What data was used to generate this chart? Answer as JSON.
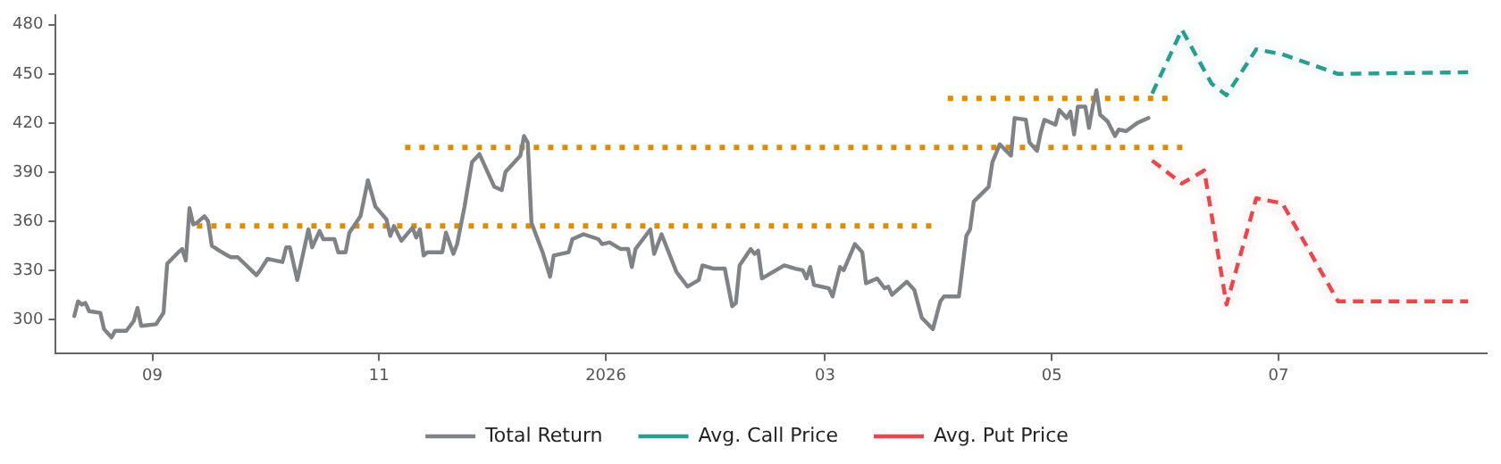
{
  "chart_data": {
    "type": "line",
    "xlim": [
      "2025-08-06",
      "2026-08-26"
    ],
    "ylim": [
      279,
      486
    ],
    "xticks": [
      {
        "value": "2025-09-01",
        "label": "09"
      },
      {
        "value": "2025-11-01",
        "label": "11"
      },
      {
        "value": "2026-01-01",
        "label": "2026"
      },
      {
        "value": "2026-03-01",
        "label": "03"
      },
      {
        "value": "2026-05-01",
        "label": "05"
      },
      {
        "value": "2026-07-01",
        "label": "07"
      }
    ],
    "yticks": [
      300,
      330,
      360,
      390,
      420,
      450,
      480
    ],
    "grid": false,
    "legend": "bottom",
    "marker": "none",
    "series": [
      {
        "name": "Total Return",
        "color": "#808285",
        "line_style": "solid",
        "x": [
          "2025-08-11",
          "2025-08-12",
          "2025-08-13",
          "2025-08-14",
          "2025-08-15",
          "2025-08-18",
          "2025-08-19",
          "2025-08-21",
          "2025-08-22",
          "2025-08-25",
          "2025-08-27",
          "2025-08-28",
          "2025-08-29",
          "2025-09-02",
          "2025-09-04",
          "2025-09-05",
          "2025-09-08",
          "2025-09-09",
          "2025-09-10",
          "2025-09-11",
          "2025-09-12",
          "2025-09-13",
          "2025-09-15",
          "2025-09-16",
          "2025-09-17",
          "2025-09-19",
          "2025-09-22",
          "2025-09-24",
          "2025-09-29",
          "2025-09-30",
          "2025-10-02",
          "2025-10-04",
          "2025-10-06",
          "2025-10-07",
          "2025-10-08",
          "2025-10-10",
          "2025-10-13",
          "2025-10-14",
          "2025-10-16",
          "2025-10-17",
          "2025-10-20",
          "2025-10-21",
          "2025-10-23",
          "2025-10-24",
          "2025-10-27",
          "2025-10-29",
          "2025-10-31",
          "2025-11-03",
          "2025-11-04",
          "2025-11-05",
          "2025-11-07",
          "2025-11-10",
          "2025-11-11",
          "2025-11-12",
          "2025-11-13",
          "2025-11-14",
          "2025-11-18",
          "2025-11-19",
          "2025-11-21",
          "2025-11-22",
          "2025-11-24",
          "2025-11-26",
          "2025-11-28",
          "2025-12-02",
          "2025-12-04",
          "2025-12-05",
          "2025-12-09",
          "2025-12-10",
          "2025-12-11",
          "2025-12-12",
          "2025-12-15",
          "2025-12-17",
          "2025-12-18",
          "2025-12-22",
          "2025-12-23",
          "2025-12-26",
          "2025-12-30",
          "2025-12-31",
          "2026-01-02",
          "2026-01-05",
          "2026-01-07",
          "2026-01-08",
          "2026-01-09",
          "2026-01-13",
          "2026-01-14",
          "2026-01-16",
          "2026-01-20",
          "2026-01-23",
          "2026-01-26",
          "2026-01-27",
          "2026-01-30",
          "2026-02-02",
          "2026-02-04",
          "2026-02-05",
          "2026-02-06",
          "2026-02-09",
          "2026-02-10",
          "2026-02-11",
          "2026-02-12",
          "2026-02-18",
          "2026-02-21",
          "2026-02-23",
          "2026-02-24",
          "2026-02-25",
          "2026-02-26",
          "2026-03-02",
          "2026-03-03",
          "2026-03-05",
          "2026-03-06",
          "2026-03-09",
          "2026-03-11",
          "2026-03-12",
          "2026-03-15",
          "2026-03-17",
          "2026-03-18",
          "2026-03-19",
          "2026-03-23",
          "2026-03-25",
          "2026-03-27",
          "2026-03-30",
          "2026-04-01",
          "2026-04-02",
          "2026-04-06",
          "2026-04-08",
          "2026-04-09",
          "2026-04-10",
          "2026-04-14",
          "2026-04-15",
          "2026-04-17",
          "2026-04-20",
          "2026-04-21",
          "2026-04-24",
          "2026-04-25",
          "2026-04-27",
          "2026-04-28",
          "2026-04-29",
          "2026-05-02",
          "2026-05-03",
          "2026-05-05",
          "2026-05-06",
          "2026-05-07",
          "2026-05-08",
          "2026-05-10",
          "2026-05-11",
          "2026-05-12",
          "2026-05-13",
          "2026-05-14",
          "2026-05-16",
          "2026-05-18",
          "2026-05-19",
          "2026-05-21",
          "2026-05-24",
          "2026-05-27"
        ],
        "values": [
          302,
          311,
          309,
          310,
          305,
          304,
          294,
          289,
          293,
          293,
          299,
          307,
          296,
          297,
          304,
          334,
          341,
          343,
          336,
          368,
          358,
          359,
          363,
          360,
          345,
          342,
          338,
          338,
          327,
          330,
          337,
          336,
          335,
          344,
          344,
          324,
          355,
          344,
          354,
          349,
          349,
          341,
          341,
          353,
          363,
          385,
          369,
          361,
          351,
          357,
          348,
          356,
          350,
          355,
          339,
          341,
          341,
          353,
          340,
          346,
          369,
          396,
          401,
          381,
          379,
          390,
          400,
          412,
          408,
          359,
          341,
          326,
          339,
          341,
          349,
          352,
          349,
          346,
          347,
          343,
          343,
          332,
          343,
          355,
          340,
          352,
          329,
          320,
          324,
          333,
          331,
          331,
          308,
          310,
          333,
          343,
          340,
          342,
          325,
          333,
          331,
          330,
          325,
          332,
          321,
          319,
          314,
          332,
          330,
          346,
          341,
          322,
          325,
          319,
          320,
          315,
          323,
          318,
          301,
          294,
          311,
          314,
          314,
          351,
          355,
          372,
          381,
          396,
          407,
          400,
          423,
          422,
          408,
          403,
          414,
          422,
          419,
          428,
          423,
          427,
          413,
          430,
          430,
          417,
          430,
          440,
          425,
          421,
          412,
          416,
          415,
          420,
          423
        ]
      },
      {
        "name": "Avg. Call Price",
        "color": "#2a9d8f",
        "line_style": "dashed",
        "x": [
          "2026-05-28",
          "2026-06-05",
          "2026-06-13",
          "2026-06-17",
          "2026-06-25",
          "2026-07-02",
          "2026-07-17",
          "2026-08-21"
        ],
        "values": [
          438,
          477,
          444,
          437,
          465,
          462,
          450,
          451
        ]
      },
      {
        "name": "Avg. Put Price",
        "color": "#e5484d",
        "line_style": "dashed",
        "x": [
          "2026-05-28",
          "2026-06-05",
          "2026-06-11",
          "2026-06-17",
          "2026-06-25",
          "2026-07-02",
          "2026-07-17",
          "2026-08-21"
        ],
        "values": [
          397,
          383,
          391,
          309,
          374,
          371,
          311,
          311
        ]
      },
      {
        "color": "#e08a00",
        "line_style": "dotted",
        "x": [
          "2025-09-13",
          "2026-03-30"
        ],
        "values": [
          357,
          357
        ]
      },
      {
        "color": "#e08a00",
        "line_style": "dotted",
        "x": [
          "2025-11-08",
          "2026-06-06"
        ],
        "values": [
          405,
          405
        ]
      },
      {
        "color": "#e08a00",
        "line_style": "dotted",
        "x": [
          "2026-04-03",
          "2026-06-02"
        ],
        "values": [
          435,
          435
        ]
      }
    ]
  }
}
